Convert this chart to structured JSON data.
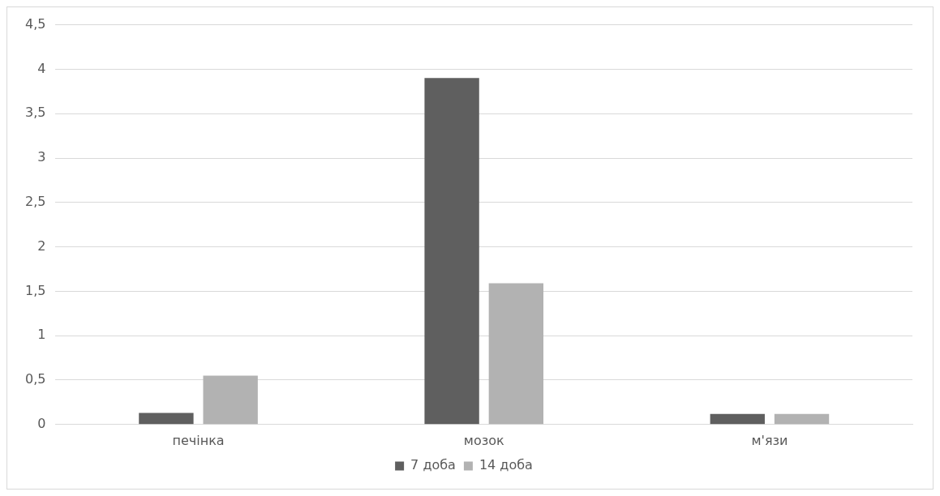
{
  "chart_data": {
    "type": "bar",
    "categories": [
      "печінка",
      "мозок",
      "м'язи"
    ],
    "series": [
      {
        "name": "7 доба",
        "color": "#5f5f5f",
        "values": [
          0.13,
          3.9,
          0.12
        ]
      },
      {
        "name": "14 доба",
        "color": "#b2b2b2",
        "values": [
          0.55,
          1.59,
          0.12
        ]
      }
    ],
    "ylim": [
      0,
      4.5
    ],
    "yticks": [
      0,
      {
        "value": 0.5,
        "label": "0,5"
      },
      1,
      {
        "value": 1.5,
        "label": "1,5"
      },
      2,
      {
        "value": 2.5,
        "label": "2,5"
      },
      3,
      {
        "value": 3.5,
        "label": "3,5"
      },
      4,
      {
        "value": 4.5,
        "label": "4,5"
      }
    ],
    "grid": "y",
    "legend": "bottom"
  }
}
